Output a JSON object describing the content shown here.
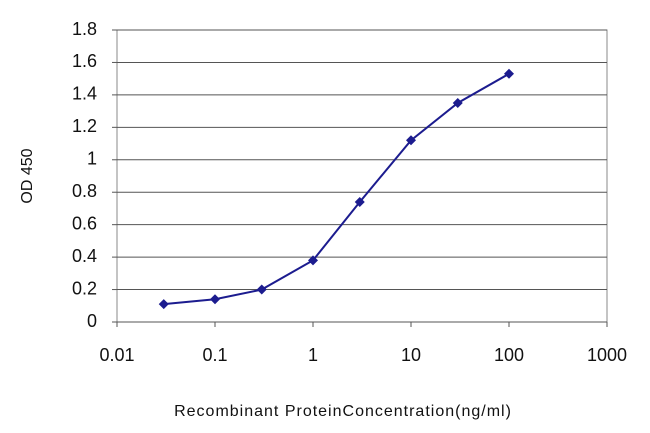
{
  "chart_data": {
    "type": "line",
    "x_label": "Recombinant ProteinConcentration(ng/ml)",
    "y_label": "OD 450",
    "x": [
      0.03,
      0.1,
      0.3,
      1,
      3,
      10,
      30,
      100
    ],
    "series": [
      {
        "color": "#1c1c8f",
        "values": [
          0.11,
          0.14,
          0.2,
          0.38,
          0.74,
          1.12,
          1.35,
          1.53
        ]
      }
    ],
    "xscale": "log",
    "xlim": [
      0.01,
      1000
    ],
    "xticks": [
      0.01,
      0.1,
      1,
      10,
      100,
      1000
    ],
    "ylim": [
      0,
      1.8
    ],
    "yticks": [
      0,
      0.2,
      0.4,
      0.6,
      0.8,
      1,
      1.2,
      1.4,
      1.6,
      1.8
    ],
    "grid": true
  }
}
